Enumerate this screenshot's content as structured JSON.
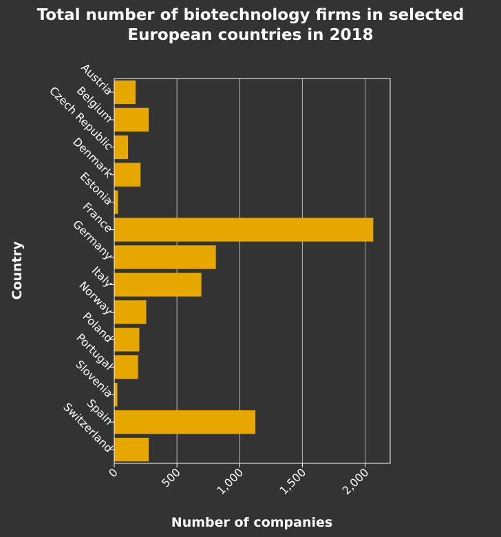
{
  "chart_data": {
    "type": "bar",
    "orientation": "horizontal",
    "title_lines": [
      "Total number of biotechnology firms in selected",
      "European countries in 2018"
    ],
    "xlabel": "Number of companies",
    "ylabel": "Country",
    "categories": [
      "Austria",
      "Belgium",
      "Czech Republic",
      "Denmark",
      "Estonia",
      "France",
      "Germany",
      "Italy",
      "Norway",
      "Poland",
      "Portugal",
      "Slovenia",
      "Spain",
      "Switzerland"
    ],
    "values": [
      170,
      275,
      110,
      210,
      30,
      2065,
      810,
      695,
      255,
      200,
      190,
      25,
      1125,
      275
    ],
    "xlim": [
      0,
      2200
    ],
    "xticks": [
      0,
      500,
      1000,
      1500,
      2000
    ],
    "xtick_labels": [
      "0",
      "500",
      "1,000",
      "1,500",
      "2,000"
    ],
    "grid": "vertical",
    "bar_color": "#e6a800",
    "background": "#333333"
  }
}
